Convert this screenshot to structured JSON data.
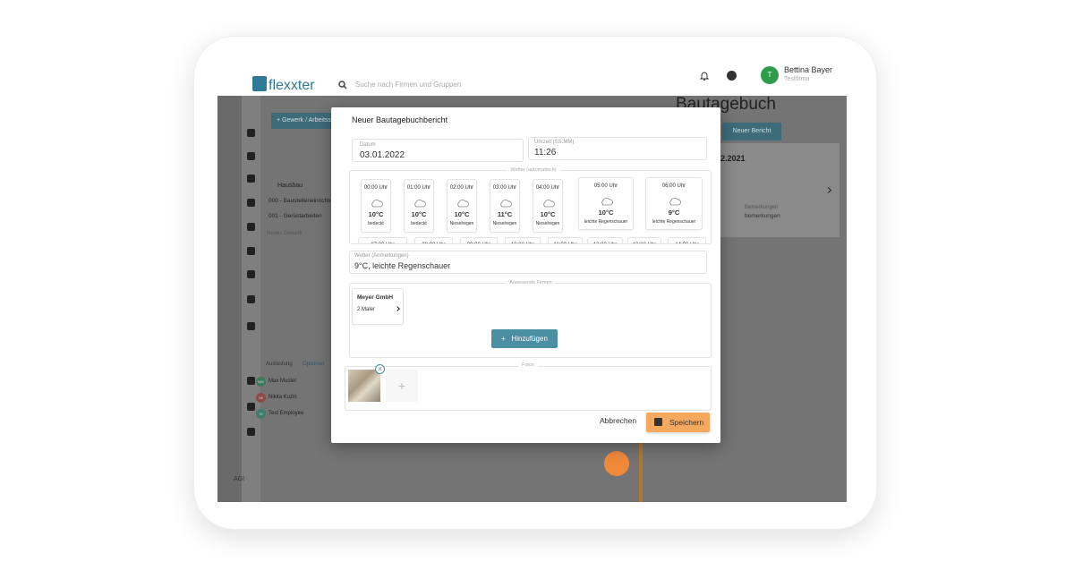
{
  "header": {
    "logo": "flexxter",
    "search_placeholder": "Suche nach Firmen und Gruppen",
    "avatar_initial": "T",
    "user_name": "Bettina Bayer",
    "company": "Testfirma"
  },
  "background": {
    "add_button": "+ Gewerk / Arbeitssch",
    "tree": [
      "Hausbau",
      "000 - Baustelleneinrichtung",
      "001 - Gerüstarbeiten",
      "Neues Gewerk"
    ],
    "workload": "Auslastung",
    "options": "Optionen",
    "people": [
      {
        "initials": "MM",
        "name": "Max Muster"
      },
      {
        "initials": "NK",
        "name": "Nikita Kuzin"
      },
      {
        "initials": "TE",
        "name": "Test Employee"
      }
    ],
    "footer": "AGI",
    "page_title": "Bautagebuch",
    "new_report": "Neuer Bericht",
    "report_date": "2.2021",
    "remarks_label": "Bemerkungen",
    "remarks_value": "bemerkungen"
  },
  "dialog": {
    "title": "Neuer Bautagebuchbericht",
    "date_label": "Datum",
    "date_value": "03.01.2022",
    "time_label": "Uhrzeit (SS:MM)",
    "time_value": "11:26",
    "weather_auto_label": "Wetter (automatisch)",
    "weather": [
      {
        "time": "00:00 Uhr",
        "temp": "10°C",
        "desc": "bedeckt"
      },
      {
        "time": "01:00 Uhr",
        "temp": "10°C",
        "desc": "bedeckt"
      },
      {
        "time": "02:00 Uhr",
        "temp": "10°C",
        "desc": "Nieselregen"
      },
      {
        "time": "03:00 Uhr",
        "temp": "11°C",
        "desc": "Nieselregen"
      },
      {
        "time": "04:00 Uhr",
        "temp": "10°C",
        "desc": "Nieselregen"
      },
      {
        "time": "05:00 Uhr",
        "temp": "10°C",
        "desc": "leichte Regenschauer"
      },
      {
        "time": "06:00 Uhr",
        "temp": "9°C",
        "desc": "leichte Regenschauer"
      }
    ],
    "weather_next": [
      "07:00 Uhr",
      "08:00 Uhr",
      "09:00 Uhr",
      "10:00 Uhr",
      "11:00 Uhr",
      "12:00 Uhr",
      "13:00 Uhr",
      "14:00 Uhr"
    ],
    "weather_note_label": "Wetter (Anmerkungen)",
    "weather_note_value": "9°C, leichte Regenschauer",
    "companies_label": "Anwesende Firmen",
    "company_name": "Meyer GmbH",
    "company_staff": "2 Maler",
    "add_button": "Hinzufügen",
    "photos_label": "Fotos",
    "cancel": "Abbrechen",
    "save": "Speichern"
  }
}
